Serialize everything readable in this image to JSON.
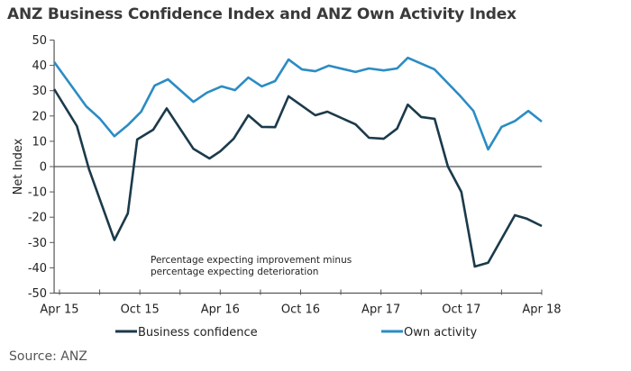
{
  "chart_data": {
    "type": "line",
    "title": "ANZ Business Confidence Index and ANZ Own Activity Index",
    "xlabel": "",
    "ylabel": "Net Index",
    "ylim": [
      -50,
      50
    ],
    "yticks": [
      50,
      40,
      30,
      20,
      10,
      0,
      -10,
      -20,
      -30,
      -40,
      -50
    ],
    "x_unit": "months since Apr 15",
    "xlim": [
      -0.4,
      36
    ],
    "xticks": [
      {
        "month": 0,
        "label": "Apr 15"
      },
      {
        "month": 3,
        "label": ""
      },
      {
        "month": 6,
        "label": "Oct 15"
      },
      {
        "month": 9,
        "label": ""
      },
      {
        "month": 12,
        "label": "Apr 16"
      },
      {
        "month": 15,
        "label": ""
      },
      {
        "month": 18,
        "label": "Oct 16"
      },
      {
        "month": 21,
        "label": ""
      },
      {
        "month": 24,
        "label": "Apr 17"
      },
      {
        "month": 27,
        "label": ""
      },
      {
        "month": 30,
        "label": "Oct 17"
      },
      {
        "month": 33,
        "label": ""
      },
      {
        "month": 36,
        "label": "Apr 18"
      }
    ],
    "annotation": [
      "Percentage expecting improvement minus",
      "percentage expecting deterioration"
    ],
    "legend_position": "bottom",
    "series": [
      {
        "name": "Business confidence",
        "color": "#1b3a4b",
        "x": [
          -0.4,
          1.3,
          2.2,
          4.1,
          5.1,
          5.8,
          7.0,
          8.0,
          10.0,
          11.2,
          12.0,
          13.0,
          14.1,
          15.1,
          16.1,
          17.1,
          19.1,
          20.0,
          22.1,
          23.1,
          24.2,
          25.2,
          26.0,
          27.0,
          28.0,
          29.0,
          30.0,
          31.0,
          32.0,
          34.0,
          34.9,
          36.0
        ],
        "values": [
          30.6,
          16,
          -1,
          -29,
          -18.5,
          10.7,
          14.6,
          23,
          7,
          3.2,
          6,
          11,
          20.3,
          15.7,
          15.6,
          27.8,
          20.3,
          21.7,
          16.7,
          11.4,
          11,
          15,
          24.5,
          19.6,
          18.9,
          0,
          -10,
          -39.5,
          -38,
          -19.2,
          -20.6,
          -23.5
        ]
      },
      {
        "name": "Own activity",
        "color": "#2b8cc4",
        "x": [
          -0.4,
          2.0,
          3.0,
          4.1,
          5.1,
          6.1,
          7.1,
          8.1,
          10.0,
          11.0,
          12.1,
          13.1,
          14.1,
          15.1,
          16.1,
          17.1,
          18.1,
          19.1,
          20.1,
          22.1,
          23.1,
          24.2,
          25.2,
          26.0,
          28.0,
          29.9,
          30.9,
          32.0,
          33.0,
          34.0,
          35.0,
          36.0
        ],
        "values": [
          41.3,
          23.8,
          19,
          12,
          16.4,
          21.7,
          32,
          34.5,
          25.6,
          29.2,
          31.7,
          30.2,
          35.2,
          31.7,
          33.8,
          42.3,
          38.4,
          37.7,
          39.9,
          37.4,
          38.8,
          38,
          38.8,
          43,
          38.4,
          28,
          22,
          6.8,
          15.7,
          18,
          22,
          17.8
        ]
      }
    ]
  },
  "source": "Source: ANZ"
}
